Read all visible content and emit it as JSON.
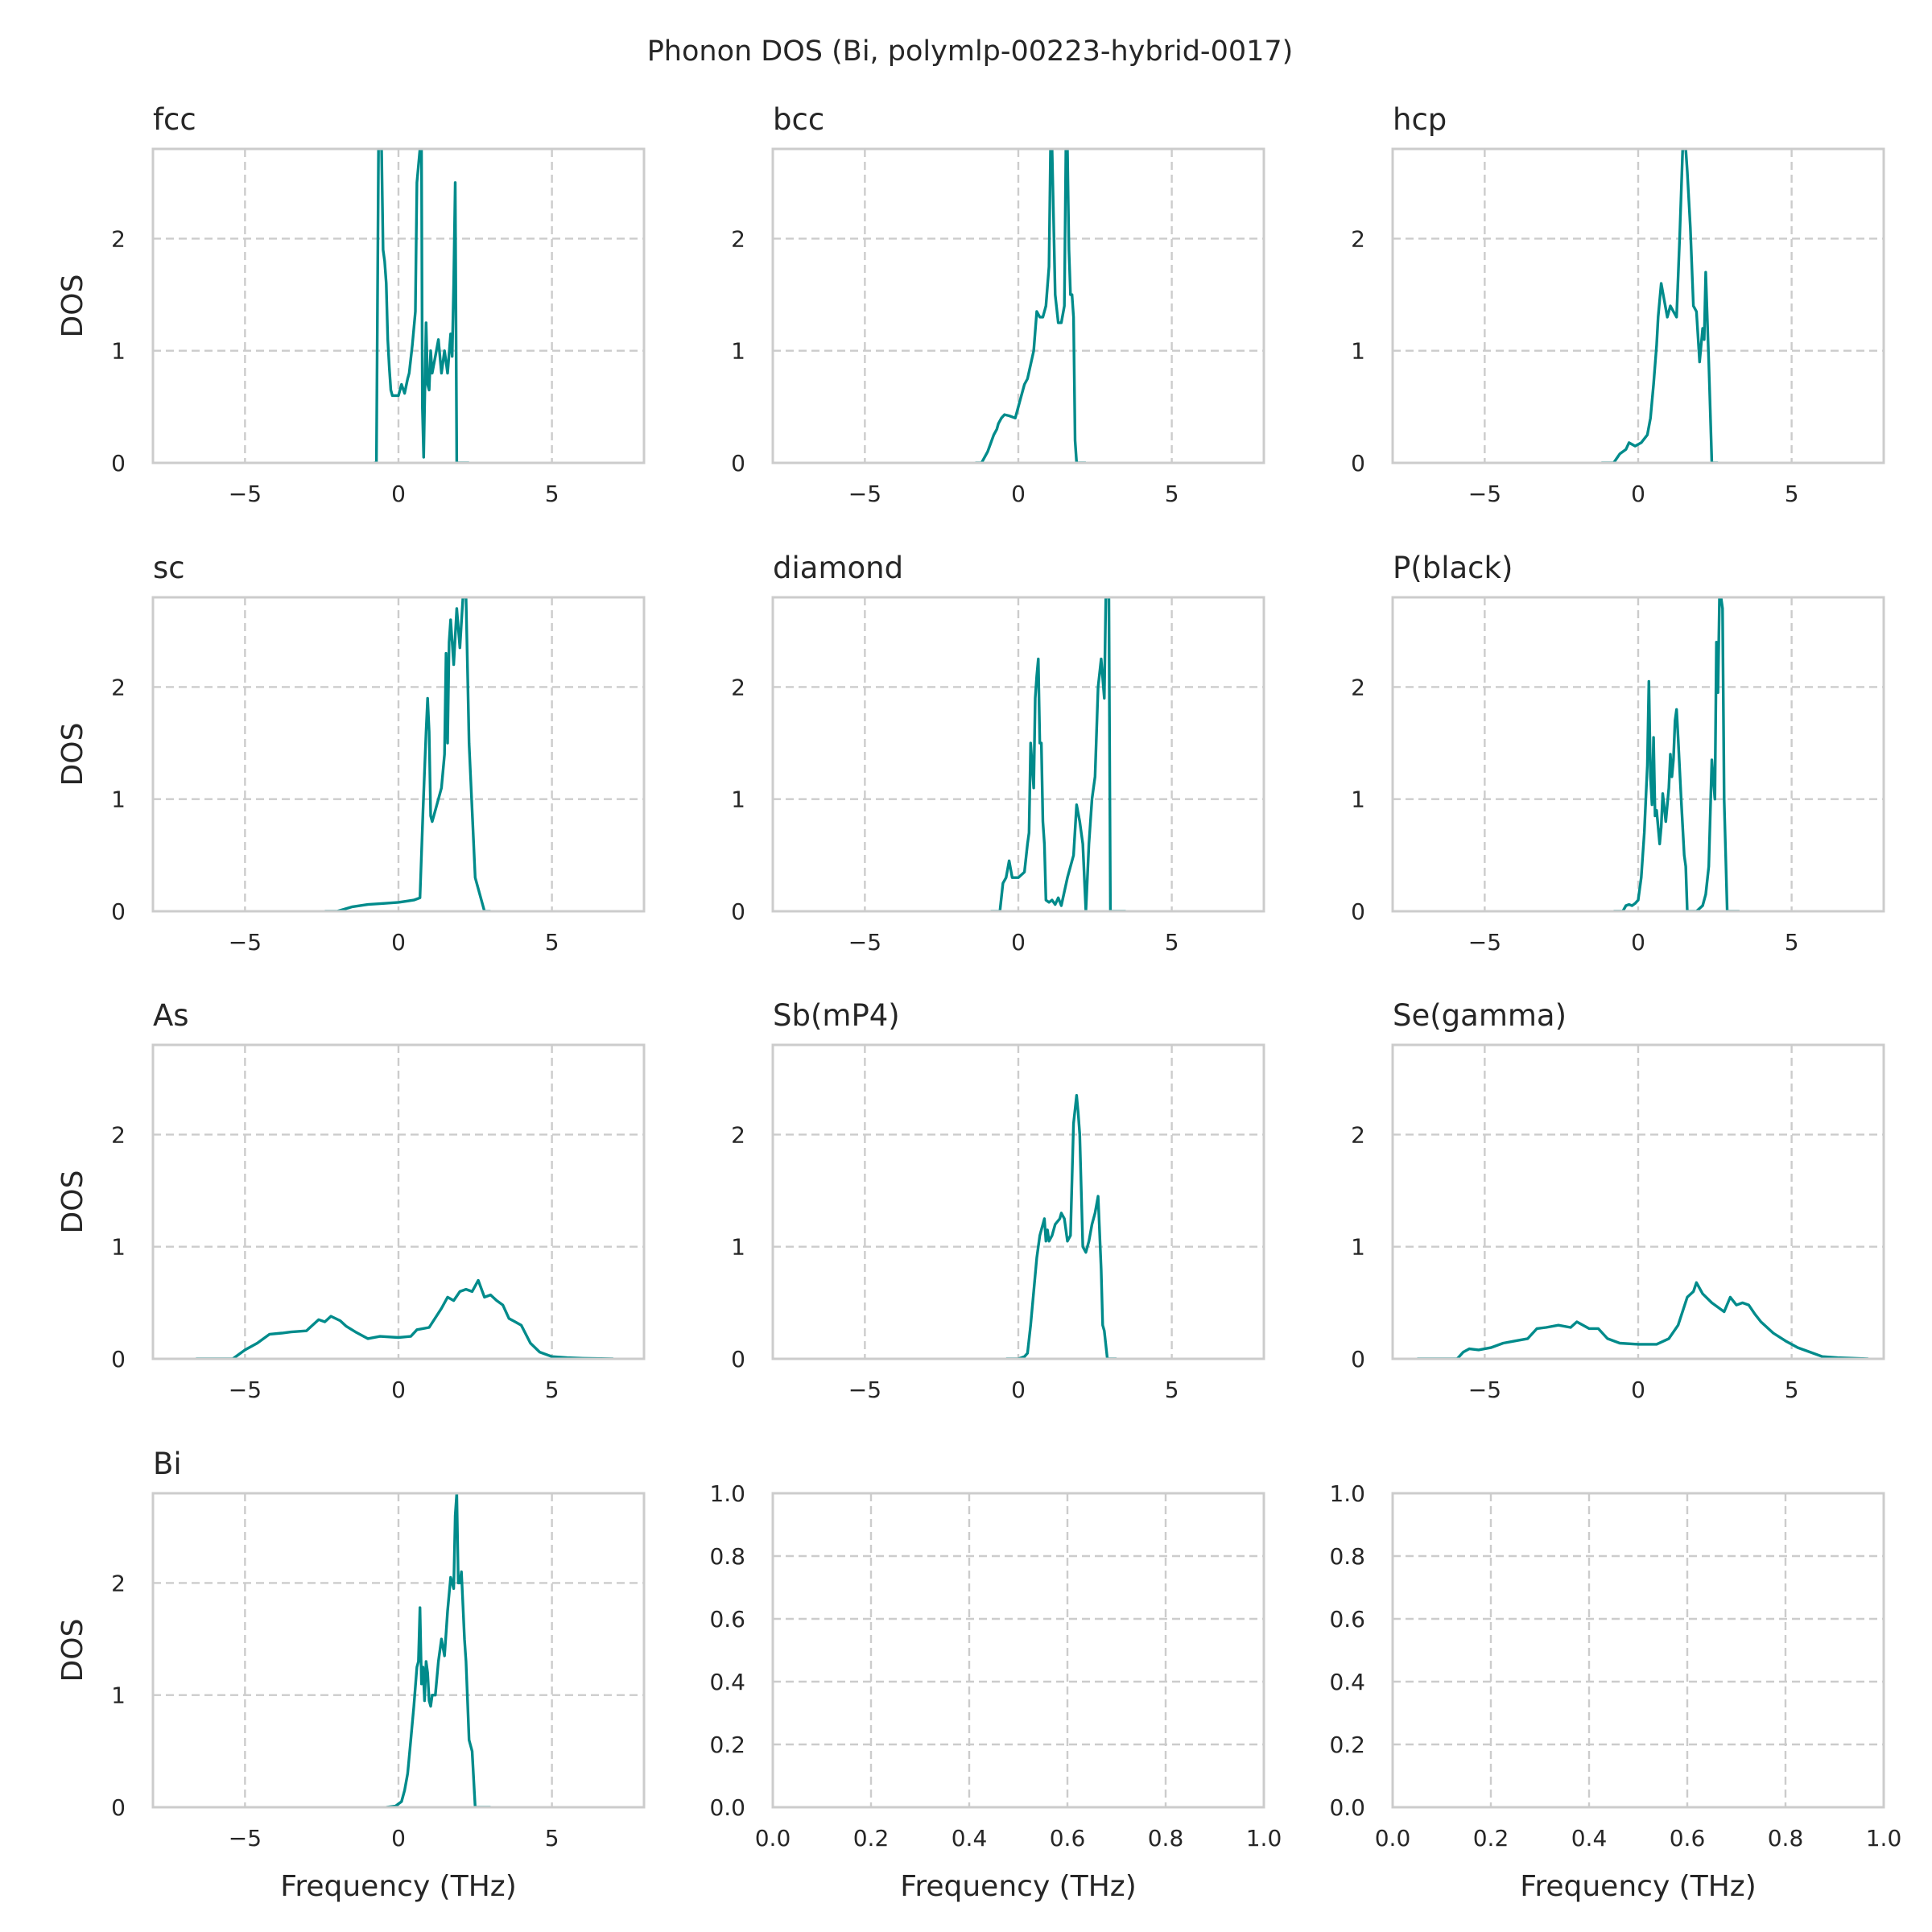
{
  "figure": {
    "title": "Phonon DOS (Bi, polymlp-00223-hybrid-0017)"
  },
  "chart_data": [
    {
      "type": "line",
      "title": "fcc",
      "xlabel": "",
      "ylabel": "DOS",
      "xlim": [
        -8,
        8
      ],
      "ylim": [
        0,
        2.8
      ],
      "xticks": [
        "−5",
        "0",
        "5"
      ],
      "xtick_values": [
        -5,
        0,
        5
      ],
      "yticks": [
        "0",
        "1",
        "2"
      ],
      "ytick_values": [
        0,
        1,
        2
      ],
      "grid": true,
      "color": "#008b8b",
      "x": [
        -0.8,
        -0.72,
        -0.65,
        -0.55,
        -0.5,
        -0.45,
        -0.4,
        -0.35,
        -0.3,
        -0.25,
        -0.2,
        -0.1,
        0.0,
        0.1,
        0.2,
        0.3,
        0.35,
        0.45,
        0.55,
        0.6,
        0.7,
        0.75,
        0.78,
        0.82,
        0.85,
        0.9,
        0.95,
        1.0,
        1.05,
        1.1,
        1.2,
        1.3,
        1.4,
        1.5,
        1.6,
        1.7,
        1.75,
        1.8,
        1.85,
        1.9,
        2.0,
        2.3
      ],
      "y": [
        0,
        0,
        2.8,
        2.8,
        1.9,
        1.8,
        1.6,
        1.1,
        0.85,
        0.65,
        0.6,
        0.6,
        0.6,
        0.7,
        0.62,
        0.75,
        0.8,
        1.05,
        1.35,
        2.5,
        2.8,
        2.8,
        0.5,
        0.05,
        0.5,
        1.25,
        0.7,
        0.65,
        1.0,
        0.8,
        0.95,
        1.1,
        0.8,
        1.0,
        0.8,
        1.15,
        0.95,
        1.6,
        2.5,
        0,
        0,
        0
      ]
    },
    {
      "type": "line",
      "title": "bcc",
      "xlabel": "",
      "ylabel": "",
      "xlim": [
        -8,
        8
      ],
      "ylim": [
        0,
        2.8
      ],
      "xticks": [
        "−5",
        "0",
        "5"
      ],
      "xtick_values": [
        -5,
        0,
        5
      ],
      "yticks": [
        "0",
        "1",
        "2"
      ],
      "ytick_values": [
        0,
        1,
        2
      ],
      "grid": true,
      "color": "#008b8b",
      "x": [
        -1.4,
        -1.2,
        -1.0,
        -0.8,
        -0.7,
        -0.65,
        -0.55,
        -0.45,
        -0.3,
        -0.1,
        0.1,
        0.2,
        0.3,
        0.5,
        0.6,
        0.7,
        0.8,
        0.9,
        1.0,
        1.05,
        1.1,
        1.2,
        1.3,
        1.4,
        1.5,
        1.55,
        1.6,
        1.65,
        1.7,
        1.75,
        1.8,
        1.85,
        1.9,
        2.0,
        2.2
      ],
      "y": [
        0,
        0,
        0.1,
        0.25,
        0.3,
        0.35,
        0.4,
        0.43,
        0.42,
        0.4,
        0.6,
        0.7,
        0.75,
        1.0,
        1.35,
        1.3,
        1.3,
        1.4,
        1.75,
        2.8,
        2.8,
        1.5,
        1.25,
        1.25,
        1.4,
        2.8,
        2.8,
        1.9,
        1.5,
        1.5,
        1.3,
        0.2,
        0,
        0,
        0
      ]
    },
    {
      "type": "line",
      "title": "hcp",
      "xlabel": "",
      "ylabel": "",
      "xlim": [
        -8,
        8
      ],
      "ylim": [
        0,
        2.8
      ],
      "xticks": [
        "−5",
        "0",
        "5"
      ],
      "xtick_values": [
        -5,
        0,
        5
      ],
      "yticks": [
        "0",
        "1",
        "2"
      ],
      "ytick_values": [
        0,
        1,
        2
      ],
      "grid": true,
      "color": "#008b8b",
      "x": [
        -1.2,
        -0.8,
        -0.6,
        -0.4,
        -0.3,
        -0.1,
        0.1,
        0.3,
        0.4,
        0.5,
        0.6,
        0.65,
        0.75,
        0.85,
        0.95,
        1.05,
        1.15,
        1.25,
        1.35,
        1.45,
        1.55,
        1.6,
        1.7,
        1.8,
        1.9,
        2.0,
        2.1,
        2.15,
        2.2,
        2.3,
        2.4,
        2.6
      ],
      "y": [
        0,
        0,
        0.08,
        0.12,
        0.18,
        0.15,
        0.18,
        0.25,
        0.4,
        0.7,
        1.05,
        1.3,
        1.6,
        1.45,
        1.3,
        1.4,
        1.35,
        1.3,
        2.0,
        2.8,
        2.8,
        2.6,
        2.1,
        1.4,
        1.35,
        0.9,
        1.2,
        1.1,
        1.7,
        0.9,
        0,
        0
      ]
    },
    {
      "type": "line",
      "title": "sc",
      "xlabel": "",
      "ylabel": "DOS",
      "xlim": [
        -8,
        8
      ],
      "ylim": [
        0,
        2.8
      ],
      "xticks": [
        "−5",
        "0",
        "5"
      ],
      "xtick_values": [
        -5,
        0,
        5
      ],
      "yticks": [
        "0",
        "1",
        "2"
      ],
      "ytick_values": [
        0,
        1,
        2
      ],
      "grid": true,
      "color": "#008b8b",
      "x": [
        -2.4,
        -2.0,
        -1.5,
        -1.0,
        -0.5,
        0.0,
        0.5,
        0.7,
        0.8,
        0.9,
        0.95,
        1.0,
        1.05,
        1.1,
        1.2,
        1.4,
        1.5,
        1.55,
        1.6,
        1.65,
        1.7,
        1.8,
        1.9,
        2.0,
        2.1,
        2.2,
        2.3,
        2.5,
        2.8,
        3.0
      ],
      "y": [
        0,
        0,
        0.04,
        0.06,
        0.07,
        0.08,
        0.1,
        0.12,
        0.9,
        1.6,
        1.9,
        1.6,
        0.85,
        0.8,
        0.9,
        1.1,
        1.4,
        2.3,
        1.5,
        2.4,
        2.6,
        2.2,
        2.7,
        2.35,
        2.8,
        2.8,
        1.5,
        0.3,
        0,
        0
      ]
    },
    {
      "type": "line",
      "title": "diamond",
      "xlabel": "",
      "ylabel": "",
      "xlim": [
        -8,
        8
      ],
      "ylim": [
        0,
        2.8
      ],
      "xticks": [
        "−5",
        "0",
        "5"
      ],
      "xtick_values": [
        -5,
        0,
        5
      ],
      "yticks": [
        "0",
        "1",
        "2"
      ],
      "ytick_values": [
        0,
        1,
        2
      ],
      "grid": true,
      "color": "#008b8b",
      "x": [
        -0.9,
        -0.6,
        -0.5,
        -0.4,
        -0.3,
        -0.2,
        0.0,
        0.2,
        0.3,
        0.35,
        0.4,
        0.5,
        0.55,
        0.6,
        0.65,
        0.7,
        0.75,
        0.8,
        0.85,
        0.9,
        1.0,
        1.1,
        1.2,
        1.3,
        1.4,
        1.6,
        1.8,
        1.9,
        2.0,
        2.1,
        2.2,
        2.3,
        2.4,
        2.5,
        2.6,
        2.7,
        2.8,
        2.85,
        2.9,
        2.95,
        3.0,
        3.1,
        3.5
      ],
      "y": [
        0,
        0,
        0.25,
        0.3,
        0.45,
        0.3,
        0.3,
        0.35,
        0.6,
        0.7,
        1.5,
        1.1,
        1.9,
        2.1,
        2.25,
        1.5,
        1.5,
        0.8,
        0.6,
        0.1,
        0.08,
        0.1,
        0.06,
        0.12,
        0.05,
        0.3,
        0.5,
        0.95,
        0.8,
        0.6,
        0,
        0.6,
        1.0,
        1.2,
        2.0,
        2.25,
        1.9,
        2.8,
        2.8,
        2.8,
        0,
        0,
        0
      ]
    },
    {
      "type": "line",
      "title": "P(black)",
      "xlabel": "",
      "ylabel": "",
      "xlim": [
        -8,
        8
      ],
      "ylim": [
        0,
        2.8
      ],
      "xticks": [
        "−5",
        "0",
        "5"
      ],
      "xtick_values": [
        -5,
        0,
        5
      ],
      "yticks": [
        "0",
        "1",
        "2"
      ],
      "ytick_values": [
        0,
        1,
        2
      ],
      "grid": true,
      "color": "#008b8b",
      "x": [
        -0.8,
        -0.5,
        -0.4,
        -0.3,
        -0.2,
        -0.1,
        0.0,
        0.1,
        0.2,
        0.3,
        0.35,
        0.4,
        0.45,
        0.5,
        0.55,
        0.6,
        0.7,
        0.75,
        0.8,
        0.9,
        1.0,
        1.05,
        1.1,
        1.15,
        1.2,
        1.25,
        1.3,
        1.4,
        1.5,
        1.55,
        1.6,
        1.9,
        2.1,
        2.2,
        2.3,
        2.4,
        2.5,
        2.55,
        2.6,
        2.65,
        2.7,
        2.75,
        2.8,
        2.9,
        3.1,
        3.3
      ],
      "y": [
        0,
        0,
        0.05,
        0.06,
        0.05,
        0.07,
        0.1,
        0.3,
        0.7,
        1.3,
        2.05,
        1.2,
        0.95,
        1.55,
        0.85,
        0.9,
        0.6,
        0.75,
        1.05,
        0.8,
        1.1,
        1.4,
        1.2,
        1.35,
        1.7,
        1.8,
        1.55,
        1.0,
        0.5,
        0.4,
        0,
        0,
        0.05,
        0.15,
        0.4,
        1.35,
        1.0,
        2.4,
        1.95,
        2.8,
        2.8,
        2.7,
        1.0,
        0,
        0,
        0
      ]
    },
    {
      "type": "line",
      "title": "As",
      "xlabel": "",
      "ylabel": "DOS",
      "xlim": [
        -8,
        8
      ],
      "ylim": [
        0,
        2.8
      ],
      "xticks": [
        "−5",
        "0",
        "5"
      ],
      "xtick_values": [
        -5,
        0,
        5
      ],
      "yticks": [
        "0",
        "1",
        "2"
      ],
      "ytick_values": [
        0,
        1,
        2
      ],
      "grid": true,
      "color": "#008b8b",
      "x": [
        -6.6,
        -5.4,
        -5.2,
        -5.0,
        -4.6,
        -4.2,
        -3.8,
        -3.5,
        -3.0,
        -2.6,
        -2.4,
        -2.2,
        -1.9,
        -1.7,
        -1.4,
        -1.0,
        -0.6,
        0.0,
        0.4,
        0.6,
        1.0,
        1.4,
        1.6,
        1.8,
        2.0,
        2.2,
        2.4,
        2.6,
        2.8,
        3.0,
        3.2,
        3.4,
        3.6,
        3.8,
        4.0,
        4.3,
        4.6,
        5.0,
        5.5,
        6.0,
        7.0
      ],
      "y": [
        0,
        0,
        0.04,
        0.08,
        0.14,
        0.22,
        0.23,
        0.24,
        0.25,
        0.35,
        0.33,
        0.38,
        0.34,
        0.29,
        0.24,
        0.18,
        0.2,
        0.19,
        0.2,
        0.26,
        0.28,
        0.45,
        0.55,
        0.52,
        0.6,
        0.62,
        0.6,
        0.7,
        0.55,
        0.57,
        0.52,
        0.48,
        0.36,
        0.33,
        0.3,
        0.14,
        0.06,
        0.02,
        0.01,
        0.005,
        0
      ]
    },
    {
      "type": "line",
      "title": "Sb(mP4)",
      "xlabel": "",
      "ylabel": "",
      "xlim": [
        -8,
        8
      ],
      "ylim": [
        0,
        2.8
      ],
      "xticks": [
        "−5",
        "0",
        "5"
      ],
      "xtick_values": [
        -5,
        0,
        5
      ],
      "yticks": [
        "0",
        "1",
        "2"
      ],
      "ytick_values": [
        0,
        1,
        2
      ],
      "grid": true,
      "color": "#008b8b",
      "x": [
        -0.4,
        0.0,
        0.2,
        0.3,
        0.4,
        0.5,
        0.6,
        0.7,
        0.8,
        0.85,
        0.9,
        0.95,
        1.0,
        1.1,
        1.2,
        1.35,
        1.4,
        1.5,
        1.6,
        1.7,
        1.8,
        1.9,
        1.95,
        2.0,
        2.05,
        2.1,
        2.2,
        2.3,
        2.4,
        2.5,
        2.6,
        2.7,
        2.75,
        2.8,
        2.9,
        3.0,
        3.2
      ],
      "y": [
        0,
        0,
        0.02,
        0.05,
        0.3,
        0.6,
        0.9,
        1.1,
        1.2,
        1.25,
        1.05,
        1.15,
        1.05,
        1.1,
        1.2,
        1.25,
        1.3,
        1.25,
        1.05,
        1.1,
        2.1,
        2.35,
        2.2,
        2.0,
        1.5,
        1.0,
        0.95,
        1.05,
        1.2,
        1.3,
        1.45,
        0.8,
        0.3,
        0.25,
        0,
        0,
        0
      ]
    },
    {
      "type": "line",
      "title": "Se(gamma)",
      "xlabel": "",
      "ylabel": "",
      "xlim": [
        -8,
        8
      ],
      "ylim": [
        0,
        2.8
      ],
      "xticks": [
        "−5",
        "0",
        "5"
      ],
      "xtick_values": [
        -5,
        0,
        5
      ],
      "yticks": [
        "0",
        "1",
        "2"
      ],
      "ytick_values": [
        0,
        1,
        2
      ],
      "grid": true,
      "color": "#008b8b",
      "x": [
        -7.2,
        -5.9,
        -5.7,
        -5.5,
        -5.2,
        -4.8,
        -4.4,
        -4.0,
        -3.6,
        -3.3,
        -3.0,
        -2.6,
        -2.2,
        -2.0,
        -1.6,
        -1.3,
        -1.0,
        -0.6,
        0.0,
        0.6,
        1.0,
        1.3,
        1.6,
        1.8,
        1.9,
        2.1,
        2.4,
        2.8,
        3.0,
        3.2,
        3.4,
        3.6,
        3.8,
        4.0,
        4.4,
        4.8,
        5.2,
        5.6,
        6.0,
        6.5,
        7.5
      ],
      "y": [
        0,
        0,
        0.06,
        0.09,
        0.08,
        0.1,
        0.14,
        0.16,
        0.18,
        0.27,
        0.28,
        0.3,
        0.28,
        0.33,
        0.27,
        0.27,
        0.18,
        0.14,
        0.13,
        0.13,
        0.18,
        0.3,
        0.55,
        0.6,
        0.68,
        0.58,
        0.5,
        0.42,
        0.55,
        0.48,
        0.5,
        0.48,
        0.4,
        0.33,
        0.23,
        0.16,
        0.1,
        0.06,
        0.02,
        0.01,
        0
      ]
    },
    {
      "type": "line",
      "title": "Bi",
      "xlabel": "Frequency (THz)",
      "ylabel": "DOS",
      "xlim": [
        -8,
        8
      ],
      "ylim": [
        0,
        2.8
      ],
      "xticks": [
        "−5",
        "0",
        "5"
      ],
      "xtick_values": [
        -5,
        0,
        5
      ],
      "yticks": [
        "0",
        "1",
        "2"
      ],
      "ytick_values": [
        0,
        1,
        2
      ],
      "grid": true,
      "color": "#008b8b",
      "x": [
        -0.4,
        -0.1,
        0.1,
        0.2,
        0.3,
        0.4,
        0.5,
        0.6,
        0.65,
        0.7,
        0.75,
        0.8,
        0.85,
        0.9,
        0.95,
        1.0,
        1.05,
        1.1,
        1.2,
        1.3,
        1.4,
        1.5,
        1.6,
        1.7,
        1.8,
        1.85,
        1.9,
        1.95,
        2.0,
        2.05,
        2.1,
        2.15,
        2.2,
        2.3,
        2.4,
        2.5,
        2.6,
        2.8,
        3.0
      ],
      "y": [
        0,
        0.01,
        0.05,
        0.15,
        0.3,
        0.6,
        0.9,
        1.25,
        1.3,
        1.78,
        1.1,
        1.25,
        0.95,
        1.3,
        1.2,
        0.95,
        0.9,
        1.0,
        1.0,
        1.3,
        1.5,
        1.35,
        1.75,
        2.05,
        1.95,
        2.6,
        2.8,
        2.0,
        2.0,
        2.1,
        1.8,
        1.5,
        1.3,
        0.6,
        0.5,
        0.0,
        0,
        0,
        0
      ]
    },
    {
      "type": "line",
      "title": "",
      "xlabel": "Frequency (THz)",
      "ylabel": "",
      "xlim": [
        0,
        1
      ],
      "ylim": [
        0,
        1
      ],
      "xticks": [
        "0.0",
        "0.2",
        "0.4",
        "0.6",
        "0.8",
        "1.0"
      ],
      "xtick_values": [
        0,
        0.2,
        0.4,
        0.6,
        0.8,
        1.0
      ],
      "yticks": [
        "0.0",
        "0.2",
        "0.4",
        "0.6",
        "0.8",
        "1.0"
      ],
      "ytick_values": [
        0,
        0.2,
        0.4,
        0.6,
        0.8,
        1.0
      ],
      "grid": true,
      "x": [],
      "y": []
    },
    {
      "type": "line",
      "title": "",
      "xlabel": "Frequency (THz)",
      "ylabel": "",
      "xlim": [
        0,
        1
      ],
      "ylim": [
        0,
        1
      ],
      "xticks": [
        "0.0",
        "0.2",
        "0.4",
        "0.6",
        "0.8",
        "1.0"
      ],
      "xtick_values": [
        0,
        0.2,
        0.4,
        0.6,
        0.8,
        1.0
      ],
      "yticks": [
        "0.0",
        "0.2",
        "0.4",
        "0.6",
        "0.8",
        "1.0"
      ],
      "ytick_values": [
        0,
        0.2,
        0.4,
        0.6,
        0.8,
        1.0
      ],
      "grid": true,
      "x": [],
      "y": []
    }
  ]
}
